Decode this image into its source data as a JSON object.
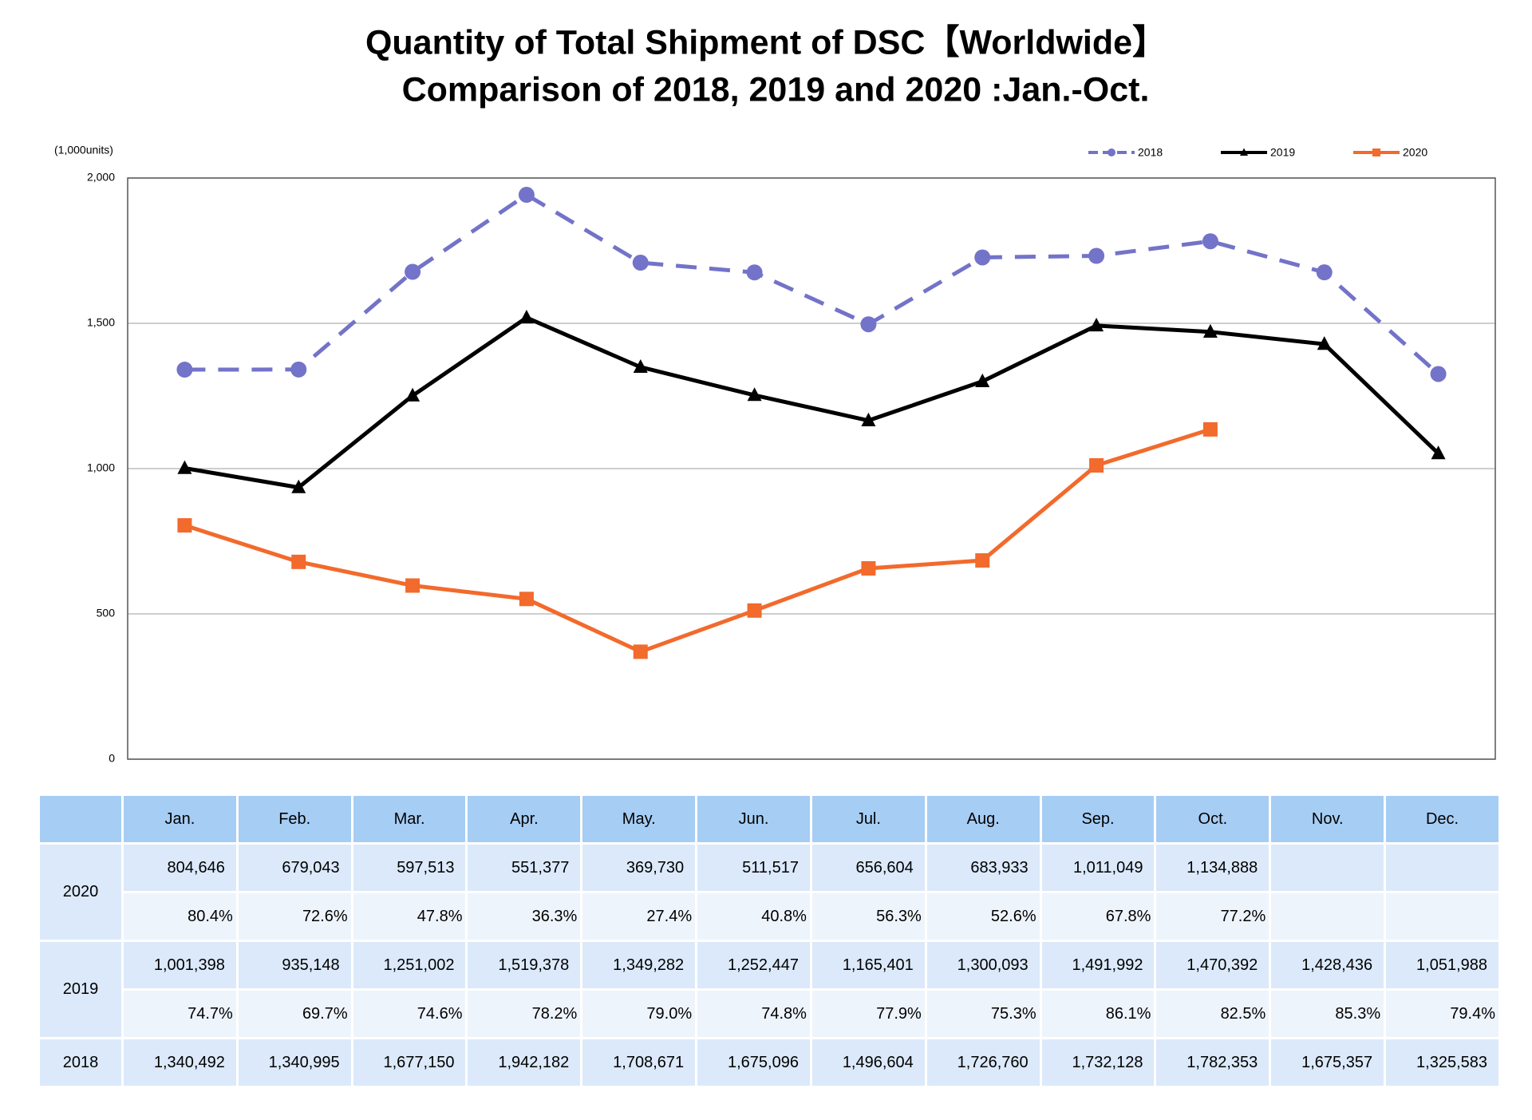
{
  "chart_data": {
    "type": "line",
    "title": "Quantity of Total Shipment of DSC【Worldwide】",
    "subtitle": "Comparison of 2018, 2019 and 2020 :Jan.-Oct.",
    "y_label": "(1,000units)",
    "categories": [
      "Jan.",
      "Feb.",
      "Mar.",
      "Apr.",
      "May.",
      "Jun.",
      "Jul.",
      "Aug.",
      "Sep.",
      "Oct.",
      "Nov.",
      "Dec."
    ],
    "series": [
      {
        "name": "2018",
        "color": "#7373c9",
        "dash": true,
        "marker": "circle",
        "values": [
          1340.492,
          1340.995,
          1677.15,
          1942.182,
          1708.671,
          1675.096,
          1496.604,
          1726.76,
          1732.128,
          1782.353,
          1675.357,
          1325.583
        ]
      },
      {
        "name": "2019",
        "color": "#000000",
        "dash": false,
        "marker": "triangle",
        "values": [
          1001.398,
          935.148,
          1251.002,
          1519.378,
          1349.282,
          1252.447,
          1165.401,
          1300.093,
          1491.992,
          1470.392,
          1428.436,
          1051.988
        ]
      },
      {
        "name": "2020",
        "color": "#f26a2c",
        "dash": false,
        "marker": "square",
        "values": [
          804.646,
          679.043,
          597.513,
          551.377,
          369.73,
          511.517,
          656.604,
          683.933,
          1011.049,
          1134.888,
          null,
          null
        ]
      }
    ],
    "ylim": [
      0,
      2000
    ],
    "yticks": [
      0,
      500,
      {
        "value": 1000,
        "label": "1,000"
      },
      {
        "value": 1500,
        "label": "1,500"
      },
      {
        "value": 2000,
        "label": "2,000"
      }
    ],
    "grid": true,
    "legend": "top-right"
  },
  "table": {
    "rows": [
      {
        "year": "2020",
        "values": [
          "804,646",
          "679,043",
          "597,513",
          "551,377",
          "369,730",
          "511,517",
          "656,604",
          "683,933",
          "1,011,049",
          "1,134,888"
        ],
        "ratios": [
          "80.4%",
          "72.6%",
          "47.8%",
          "36.3%",
          "27.4%",
          "40.8%",
          "56.3%",
          "52.6%",
          "67.8%",
          "77.2%"
        ]
      },
      {
        "year": "2019",
        "values": [
          "1,001,398",
          "935,148",
          "1,251,002",
          "1,519,378",
          "1,349,282",
          "1,252,447",
          "1,165,401",
          "1,300,093",
          "1,491,992",
          "1,470,392",
          "1,428,436",
          "1,051,988"
        ],
        "ratios": [
          "74.7%",
          "69.7%",
          "74.6%",
          "78.2%",
          "79.0%",
          "74.8%",
          "77.9%",
          "75.3%",
          "86.1%",
          "82.5%",
          "85.3%",
          "79.4%"
        ]
      },
      {
        "year": "2018",
        "values": [
          "1,340,492",
          "1,340,995",
          "1,677,150",
          "1,942,182",
          "1,708,671",
          "1,675,096",
          "1,496,604",
          "1,726,760",
          "1,732,128",
          "1,782,353",
          "1,675,357",
          "1,325,583"
        ]
      }
    ]
  }
}
